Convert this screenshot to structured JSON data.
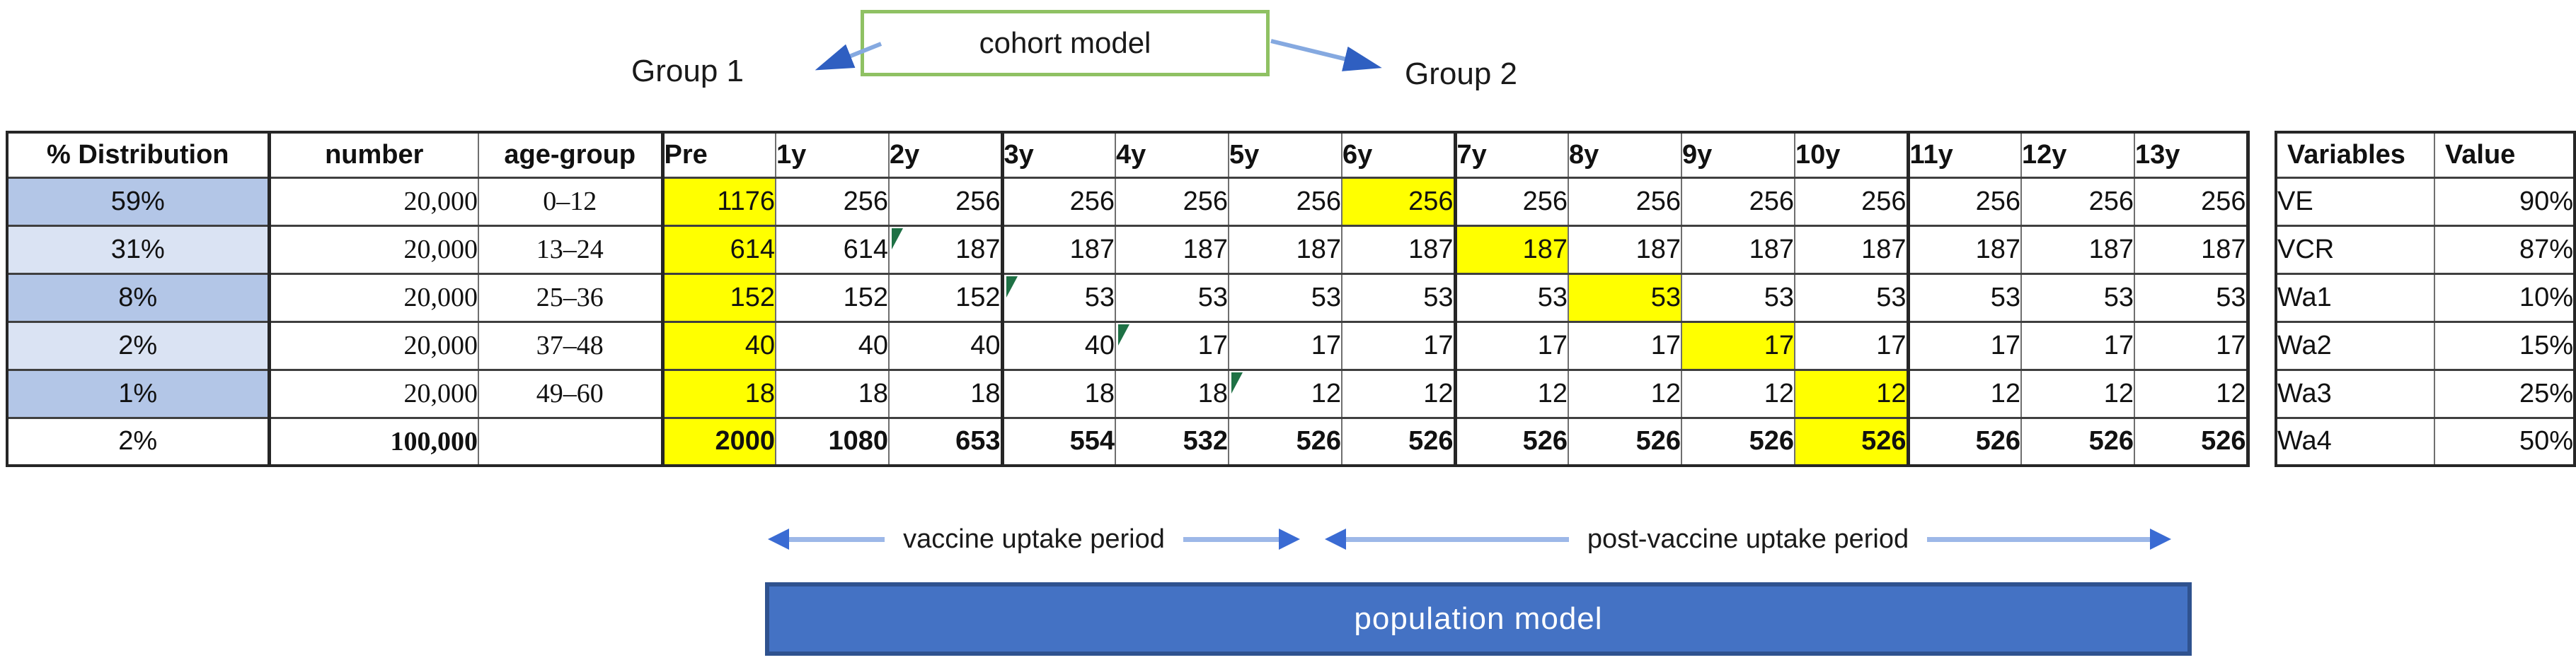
{
  "diagram": {
    "cohort_box_label": "cohort model",
    "group1_label": "Group 1",
    "group2_label": "Group 2"
  },
  "main_table": {
    "headers": [
      "% Distribution",
      "number",
      "age-group",
      "Pre",
      "1y",
      "2y",
      "3y",
      "4y",
      "5y",
      "6y",
      "7y",
      "8y",
      "9y",
      "10y",
      "11y",
      "12y",
      "13y"
    ],
    "rows": [
      {
        "distribution": "59%",
        "number": "20,000",
        "age_group": "0–12",
        "shade": "dark",
        "values": [
          "1176",
          "256",
          "256",
          "256",
          "256",
          "256",
          "256",
          "256",
          "256",
          "256",
          "256",
          "256",
          "256",
          "256"
        ],
        "yellow_value_cols": [
          0,
          6
        ],
        "flag_value_col": null,
        "bold": false
      },
      {
        "distribution": "31%",
        "number": "20,000",
        "age_group": "13–24",
        "shade": "light",
        "values": [
          "614",
          "614",
          "187",
          "187",
          "187",
          "187",
          "187",
          "187",
          "187",
          "187",
          "187",
          "187",
          "187",
          "187"
        ],
        "yellow_value_cols": [
          0,
          7
        ],
        "flag_value_col": 2,
        "bold": false
      },
      {
        "distribution": "8%",
        "number": "20,000",
        "age_group": "25–36",
        "shade": "dark",
        "values": [
          "152",
          "152",
          "152",
          "53",
          "53",
          "53",
          "53",
          "53",
          "53",
          "53",
          "53",
          "53",
          "53",
          "53"
        ],
        "yellow_value_cols": [
          0,
          8
        ],
        "flag_value_col": 3,
        "bold": false
      },
      {
        "distribution": "2%",
        "number": "20,000",
        "age_group": "37–48",
        "shade": "light",
        "values": [
          "40",
          "40",
          "40",
          "40",
          "17",
          "17",
          "17",
          "17",
          "17",
          "17",
          "17",
          "17",
          "17",
          "17"
        ],
        "yellow_value_cols": [
          0,
          9
        ],
        "flag_value_col": 4,
        "bold": false
      },
      {
        "distribution": "1%",
        "number": "20,000",
        "age_group": "49–60",
        "shade": "dark",
        "values": [
          "18",
          "18",
          "18",
          "18",
          "18",
          "12",
          "12",
          "12",
          "12",
          "12",
          "12",
          "12",
          "12",
          "12"
        ],
        "yellow_value_cols": [
          0,
          10
        ],
        "flag_value_col": 5,
        "bold": false
      },
      {
        "distribution": "2%",
        "number": "100,000",
        "age_group": "",
        "shade": "none",
        "values": [
          "2000",
          "1080",
          "653",
          "554",
          "532",
          "526",
          "526",
          "526",
          "526",
          "526",
          "526",
          "526",
          "526",
          "526"
        ],
        "yellow_value_cols": [
          0,
          10
        ],
        "flag_value_col": null,
        "bold": true
      }
    ]
  },
  "variables_table": {
    "headers": [
      "Variables",
      "Value"
    ],
    "rows": [
      {
        "name": "VE",
        "value": "90%"
      },
      {
        "name": "VCR",
        "value": "87%"
      },
      {
        "name": "Wa1",
        "value": "10%"
      },
      {
        "name": "Wa2",
        "value": "15%"
      },
      {
        "name": "Wa3",
        "value": "25%"
      },
      {
        "name": "Wa4",
        "value": "50%"
      }
    ]
  },
  "annotations": {
    "vaccine_period_label": "vaccine uptake period",
    "post_vaccine_period_label": "post-vaccine uptake period",
    "population_bar_label": "population model"
  },
  "colors": {
    "highlight_yellow": "#ffff00",
    "row_shade_dark": "#b3c6e7",
    "row_shade_light": "#dae3f3",
    "flag_green": "#1e7145",
    "cohort_box_border_green": "#8fc163",
    "arrow_line_blue": "#9db8e8",
    "arrow_head_blue": "#3a6bd3",
    "population_bar_fill": "#4472c4",
    "population_bar_border": "#2f528f"
  }
}
